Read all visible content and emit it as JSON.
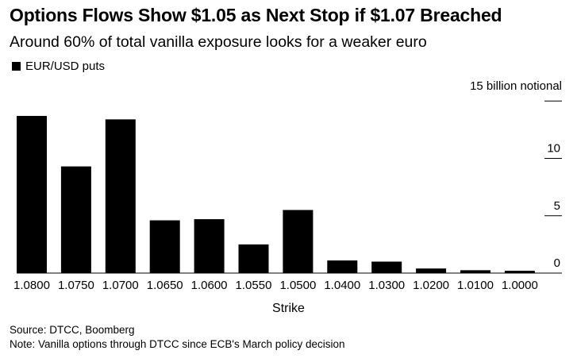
{
  "header": {
    "title": "Options Flows Show $1.05 as Next Stop if $1.07 Breached",
    "subtitle": "Around 60% of total vanilla exposure looks for a weaker euro"
  },
  "footer": {
    "source": "Source: DTCC, Boomberg",
    "note": "Note: Vanilla options through DTCC since ECB's March policy decision"
  },
  "chart_data": {
    "type": "bar",
    "title": "Options Flows Show $1.05 as Next Stop if $1.07 Breached",
    "subtitle": "Around 60% of total vanilla exposure looks for a weaker euro",
    "xlabel": "Strike",
    "ylabel": "15 billion notional",
    "categories": [
      "1.0800",
      "1.0750",
      "1.0700",
      "1.0650",
      "1.0600",
      "1.0550",
      "1.0500",
      "1.0400",
      "1.0300",
      "1.0200",
      "1.0100",
      "1.0000"
    ],
    "series": [
      {
        "name": "EUR/USD puts",
        "color": "#000000",
        "values": [
          13.7,
          9.3,
          13.4,
          4.6,
          4.7,
          2.5,
          5.5,
          1.1,
          1.0,
          0.4,
          0.25,
          0.2
        ]
      }
    ],
    "ylim": [
      0,
      15
    ],
    "yticks": [
      {
        "value": 0,
        "label": "0"
      },
      {
        "value": 5,
        "label": "5"
      },
      {
        "value": 10,
        "label": "10"
      },
      {
        "value": 15,
        "label": "15 billion notional"
      }
    ],
    "y_axis_side": "right",
    "grid": false,
    "legend_position": "top-left"
  }
}
